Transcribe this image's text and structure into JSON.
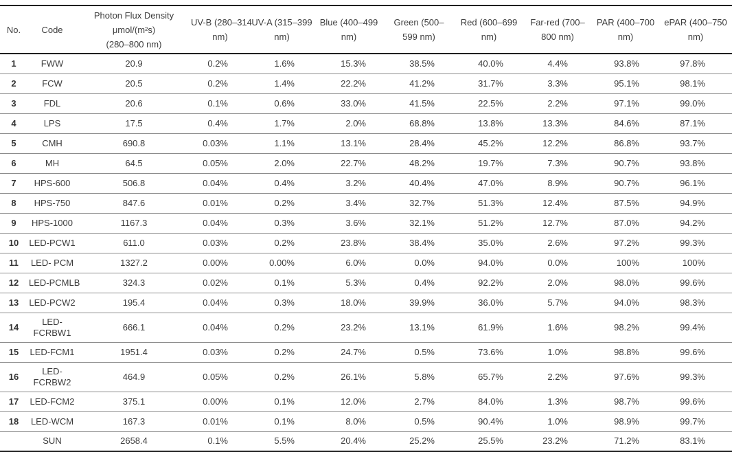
{
  "table": {
    "description": "Spectral photon flux distribution of 18 light sources and sunlight",
    "columns": [
      {
        "key": "no",
        "lines": [
          "No."
        ]
      },
      {
        "key": "code",
        "lines": [
          "Code"
        ]
      },
      {
        "key": "flux",
        "lines": [
          "Photon Flux Density",
          "μmol/(m²s)",
          "(280–800 nm)"
        ]
      },
      {
        "key": "uvb",
        "lines": [
          "UV-B (280–314",
          "nm)"
        ]
      },
      {
        "key": "uva",
        "lines": [
          "UV-A (315–399",
          "nm)"
        ]
      },
      {
        "key": "blue",
        "lines": [
          "Blue (400–499",
          "nm)"
        ]
      },
      {
        "key": "green",
        "lines": [
          "Green (500–",
          "599 nm)"
        ]
      },
      {
        "key": "red",
        "lines": [
          "Red (600–699",
          "nm)"
        ]
      },
      {
        "key": "farred",
        "lines": [
          "Far-red (700–",
          "800 nm)"
        ]
      },
      {
        "key": "par",
        "lines": [
          "PAR (400–700",
          "nm)"
        ]
      },
      {
        "key": "epar",
        "lines": [
          "ePAR (400–750",
          "nm)"
        ]
      }
    ],
    "rows": [
      {
        "no": "1",
        "code": "FWW",
        "flux": "20.9",
        "uvb": "0.2%",
        "uva": "1.6%",
        "blue": "15.3%",
        "green": "38.5%",
        "red": "40.0%",
        "farred": "4.4%",
        "par": "93.8%",
        "epar": "97.8%"
      },
      {
        "no": "2",
        "code": "FCW",
        "flux": "20.5",
        "uvb": "0.2%",
        "uva": "1.4%",
        "blue": "22.2%",
        "green": "41.2%",
        "red": "31.7%",
        "farred": "3.3%",
        "par": "95.1%",
        "epar": "98.1%"
      },
      {
        "no": "3",
        "code": "FDL",
        "flux": "20.6",
        "uvb": "0.1%",
        "uva": "0.6%",
        "blue": "33.0%",
        "green": "41.5%",
        "red": "22.5%",
        "farred": "2.2%",
        "par": "97.1%",
        "epar": "99.0%"
      },
      {
        "no": "4",
        "code": "LPS",
        "flux": "17.5",
        "uvb": "0.4%",
        "uva": "1.7%",
        "blue": "2.0%",
        "green": "68.8%",
        "red": "13.8%",
        "farred": "13.3%",
        "par": "84.6%",
        "epar": "87.1%"
      },
      {
        "no": "5",
        "code": "CMH",
        "flux": "690.8",
        "uvb": "0.03%",
        "uva": "1.1%",
        "blue": "13.1%",
        "green": "28.4%",
        "red": "45.2%",
        "farred": "12.2%",
        "par": "86.8%",
        "epar": "93.7%"
      },
      {
        "no": "6",
        "code": "MH",
        "flux": "64.5",
        "uvb": "0.05%",
        "uva": "2.0%",
        "blue": "22.7%",
        "green": "48.2%",
        "red": "19.7%",
        "farred": "7.3%",
        "par": "90.7%",
        "epar": "93.8%"
      },
      {
        "no": "7",
        "code": "HPS-600",
        "flux": "506.8",
        "uvb": "0.04%",
        "uva": "0.4%",
        "blue": "3.2%",
        "green": "40.4%",
        "red": "47.0%",
        "farred": "8.9%",
        "par": "90.7%",
        "epar": "96.1%"
      },
      {
        "no": "8",
        "code": "HPS-750",
        "flux": "847.6",
        "uvb": "0.01%",
        "uva": "0.2%",
        "blue": "3.4%",
        "green": "32.7%",
        "red": "51.3%",
        "farred": "12.4%",
        "par": "87.5%",
        "epar": "94.9%"
      },
      {
        "no": "9",
        "code": "HPS-1000",
        "flux": "1167.3",
        "uvb": "0.04%",
        "uva": "0.3%",
        "blue": "3.6%",
        "green": "32.1%",
        "red": "51.2%",
        "farred": "12.7%",
        "par": "87.0%",
        "epar": "94.2%"
      },
      {
        "no": "10",
        "code": "LED-PCW1",
        "flux": "611.0",
        "uvb": "0.03%",
        "uva": "0.2%",
        "blue": "23.8%",
        "green": "38.4%",
        "red": "35.0%",
        "farred": "2.6%",
        "par": "97.2%",
        "epar": "99.3%"
      },
      {
        "no": "11",
        "code": "LED- PCM",
        "flux": "1327.2",
        "uvb": "0.00%",
        "uva": "0.00%",
        "blue": "6.0%",
        "green": "0.0%",
        "red": "94.0%",
        "farred": "0.0%",
        "par": "100%",
        "epar": "100%"
      },
      {
        "no": "12",
        "code": "LED-PCMLB",
        "flux": "324.3",
        "uvb": "0.02%",
        "uva": "0.1%",
        "blue": "5.3%",
        "green": "0.4%",
        "red": "92.2%",
        "farred": "2.0%",
        "par": "98.0%",
        "epar": "99.6%"
      },
      {
        "no": "13",
        "code": "LED-PCW2",
        "flux": "195.4",
        "uvb": "0.04%",
        "uva": "0.3%",
        "blue": "18.0%",
        "green": "39.9%",
        "red": "36.0%",
        "farred": "5.7%",
        "par": "94.0%",
        "epar": "98.3%"
      },
      {
        "no": "14",
        "code": "LED-\nFCRBW1",
        "flux": "666.1",
        "uvb": "0.04%",
        "uva": "0.2%",
        "blue": "23.2%",
        "green": "13.1%",
        "red": "61.9%",
        "farred": "1.6%",
        "par": "98.2%",
        "epar": "99.4%"
      },
      {
        "no": "15",
        "code": "LED-FCM1",
        "flux": "1951.4",
        "uvb": "0.03%",
        "uva": "0.2%",
        "blue": "24.7%",
        "green": "0.5%",
        "red": "73.6%",
        "farred": "1.0%",
        "par": "98.8%",
        "epar": "99.6%"
      },
      {
        "no": "16",
        "code": "LED-\nFCRBW2",
        "flux": "464.9",
        "uvb": "0.05%",
        "uva": "0.2%",
        "blue": "26.1%",
        "green": "5.8%",
        "red": "65.7%",
        "farred": "2.2%",
        "par": "97.6%",
        "epar": "99.3%"
      },
      {
        "no": "17",
        "code": "LED-FCM2",
        "flux": "375.1",
        "uvb": "0.00%",
        "uva": "0.1%",
        "blue": "12.0%",
        "green": "2.7%",
        "red": "84.0%",
        "farred": "1.3%",
        "par": "98.7%",
        "epar": "99.6%"
      },
      {
        "no": "18",
        "code": "LED-WCM",
        "flux": "167.3",
        "uvb": "0.01%",
        "uva": "0.1%",
        "blue": "8.0%",
        "green": "0.5%",
        "red": "90.4%",
        "farred": "1.0%",
        "par": "98.9%",
        "epar": "99.7%"
      },
      {
        "no": "",
        "code": "SUN",
        "flux": "2658.4",
        "uvb": "0.1%",
        "uva": "5.5%",
        "blue": "20.4%",
        "green": "25.2%",
        "red": "25.5%",
        "farred": "23.2%",
        "par": "71.2%",
        "epar": "83.1%"
      }
    ],
    "colors": {
      "border_strong": "#1f1f1f",
      "border_row": "#8c8c8c",
      "text": "#3c3c3c",
      "background": "#ffffff"
    }
  }
}
